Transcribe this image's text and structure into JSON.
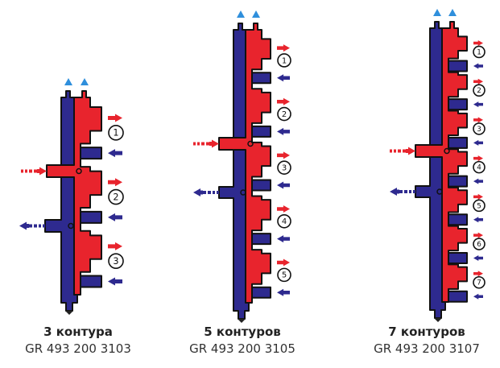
{
  "colors": {
    "supply": "#e8242d",
    "return": "#2e2a8f",
    "outline": "#111111",
    "air_vent": "#2f8fdc",
    "drain": "#222222"
  },
  "icons": {
    "air_vent": "air-vent-arrow-icon",
    "supply_out": "red-arrow-right-icon",
    "return_in": "blue-arrow-left-icon",
    "drain": "drain-arrow-down-icon"
  },
  "manifolds": [
    {
      "id": "m3",
      "title": "3 контура",
      "code": "GR 493 200 3103",
      "circuits": [
        "1",
        "2",
        "3"
      ]
    },
    {
      "id": "m5",
      "title": "5 контуров",
      "code": "GR 493 200 3105",
      "circuits": [
        "1",
        "2",
        "3",
        "4",
        "5"
      ]
    },
    {
      "id": "m7",
      "title": "7 контуров",
      "code": "GR 493 200 3107",
      "circuits": [
        "1",
        "2",
        "3",
        "4",
        "5",
        "6",
        "7"
      ]
    }
  ]
}
